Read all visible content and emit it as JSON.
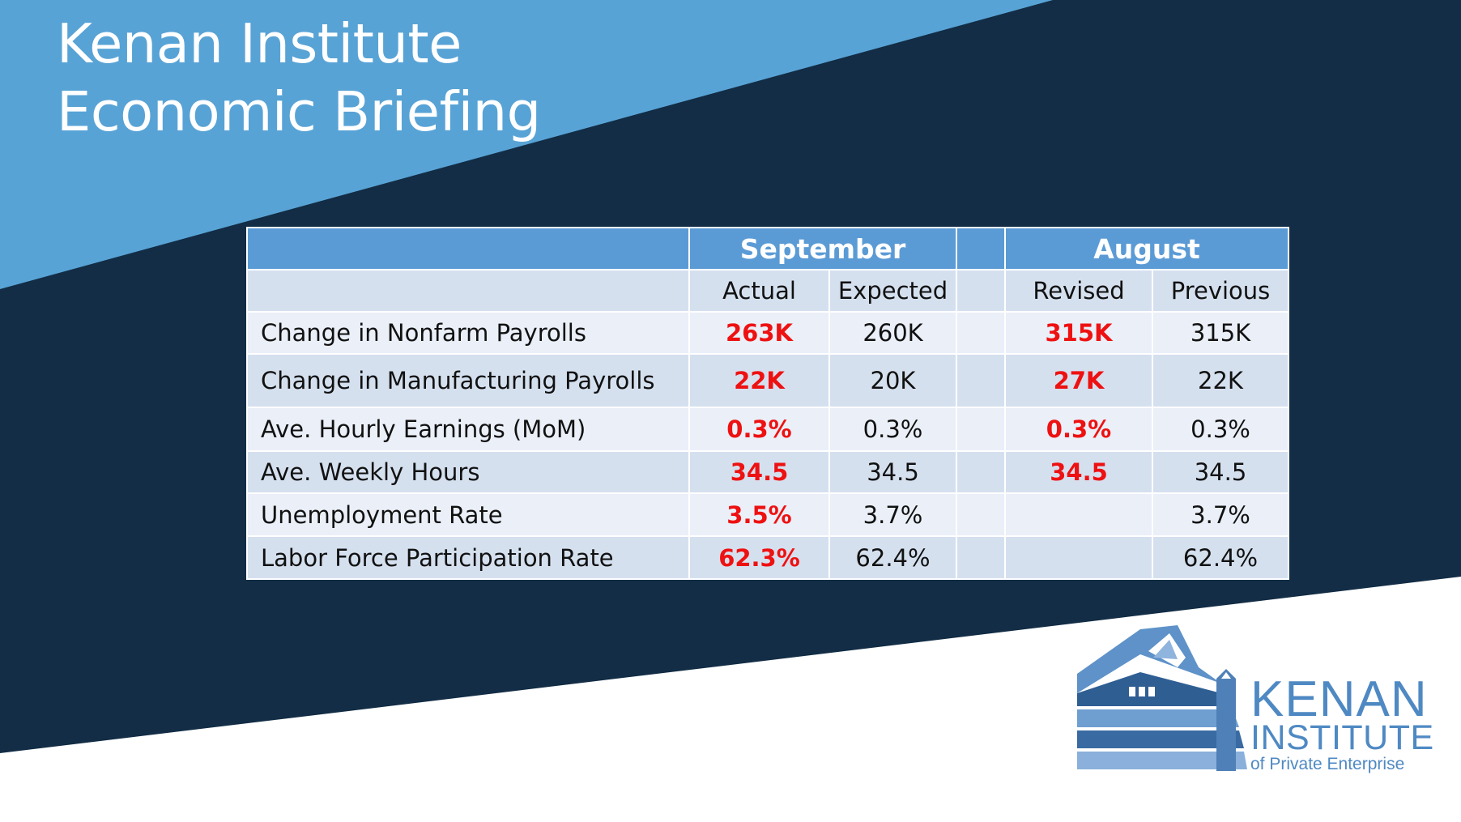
{
  "slide": {
    "title_line1": "Kenan Institute",
    "title_line2": "Economic Briefing"
  },
  "colors": {
    "background_dark": "#122d45",
    "background_light_blue": "#58a3d6",
    "header_blue": "#5b9bd5",
    "highlight_red": "#ee1111"
  },
  "table": {
    "group_headers": {
      "september": "September",
      "august": "August"
    },
    "sub_headers": {
      "actual": "Actual",
      "expected": "Expected",
      "revised": "Revised",
      "previous": "Previous"
    },
    "rows": [
      {
        "label": "Change in Nonfarm Payrolls",
        "actual": "263K",
        "expected": "260K",
        "revised": "315K",
        "previous": "315K"
      },
      {
        "label": "Change in Manufacturing Payrolls",
        "actual": "22K",
        "expected": "20K",
        "revised": "27K",
        "previous": "22K"
      },
      {
        "label": "Ave. Hourly Earnings (MoM)",
        "actual": "0.3%",
        "expected": "0.3%",
        "revised": "0.3%",
        "previous": "0.3%"
      },
      {
        "label": "Ave. Weekly Hours",
        "actual": "34.5",
        "expected": "34.5",
        "revised": "34.5",
        "previous": "34.5"
      },
      {
        "label": "Unemployment Rate",
        "actual": "3.5%",
        "expected": "3.7%",
        "revised": "",
        "previous": "3.7%"
      },
      {
        "label": "Labor Force Participation Rate",
        "actual": "62.3%",
        "expected": "62.4%",
        "revised": "",
        "previous": "62.4%"
      }
    ]
  },
  "logo": {
    "icon": "building-icon",
    "line1": "KENAN",
    "line2": "INSTITUTE",
    "line3": "of Private Enterprise"
  }
}
